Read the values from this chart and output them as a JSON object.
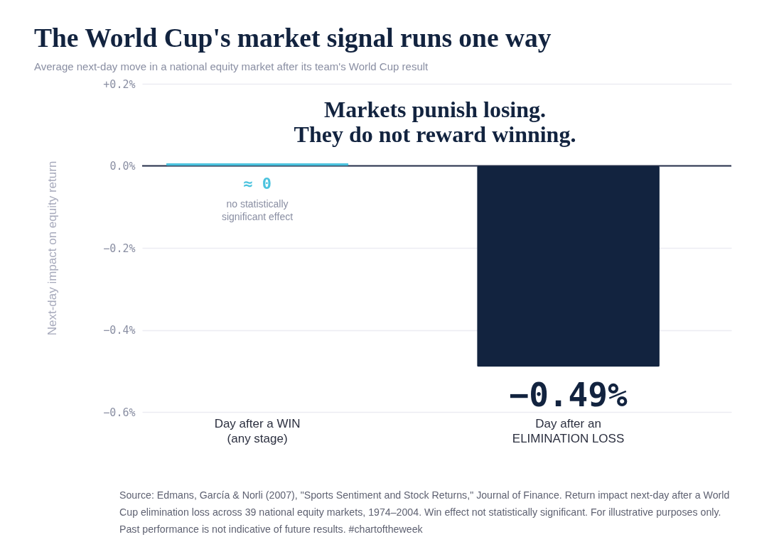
{
  "chart_data": {
    "type": "bar",
    "title": "The World Cup's market signal runs one way",
    "subtitle": "Average next-day move in a national equity market after its team's World Cup result",
    "ylabel": "Next-day impact on equity return",
    "categories": [
      "Day after a WIN\n(any stage)",
      "Day after an\nELIMINATION LOSS"
    ],
    "values": [
      0.007,
      -0.49
    ],
    "colors": [
      "#4cc3de",
      "#12233f"
    ],
    "value_labels": [
      "≈ 0",
      "−0.49%"
    ],
    "ylim": [
      -0.6,
      0.2
    ],
    "yticks": [
      {
        "value": 0.2,
        "label": "+0.2%"
      },
      {
        "value": 0,
        "label": "0.0%"
      },
      {
        "value": -0.2,
        "label": "−0.2%"
      },
      {
        "value": -0.4,
        "label": "−0.4%"
      },
      {
        "value": -0.6,
        "label": "−0.6%"
      }
    ],
    "grid": "y",
    "ref_lines": [
      {
        "axis": "y",
        "value": 0,
        "color": "#27304a"
      }
    ],
    "annotations": [
      "Markets punish losing.\nThey do not reward winning.",
      "no statistically\nsignificant effect",
      "Source: Edmans, García & Norli (2007), \"Sports Sentiment and Stock Returns,\" Journal of Finance. Return impact next-day after a World Cup elimination loss across 39 national equity markets, 1974–2004. Win effect not statistically significant. For illustrative purposes only. Past performance is not indicative of future results. #chartoftheweek"
    ]
  }
}
